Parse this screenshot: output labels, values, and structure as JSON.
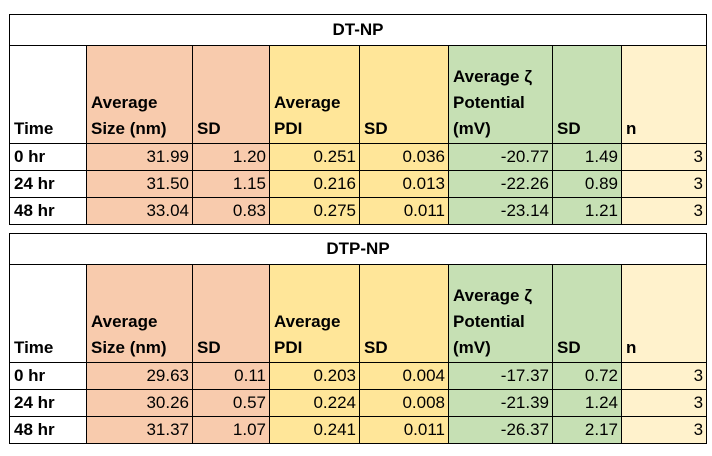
{
  "tables": [
    {
      "title": "DT-NP",
      "headers": {
        "time": "Time",
        "size": "Average Size (nm)",
        "sd1": "SD",
        "pdi": "Average PDI",
        "sd2": "SD",
        "zeta": "Average ζ Potential (mV)",
        "sd3": "SD",
        "n": "n"
      },
      "rows": [
        {
          "time": "0 hr",
          "size": "31.99",
          "sd1": "1.20",
          "pdi": "0.251",
          "sd2": "0.036",
          "zeta": "-20.77",
          "sd3": "1.49",
          "n": "3"
        },
        {
          "time": "24 hr",
          "size": "31.50",
          "sd1": "1.15",
          "pdi": "0.216",
          "sd2": "0.013",
          "zeta": "-22.26",
          "sd3": "0.89",
          "n": "3"
        },
        {
          "time": "48 hr",
          "size": "33.04",
          "sd1": "0.83",
          "pdi": "0.275",
          "sd2": "0.011",
          "zeta": "-23.14",
          "sd3": "1.21",
          "n": "3"
        }
      ]
    },
    {
      "title": "DTP-NP",
      "headers": {
        "time": "Time",
        "size": "Average Size (nm)",
        "sd1": "SD",
        "pdi": "Average PDI",
        "sd2": "SD",
        "zeta": "Average ζ Potential (mV)",
        "sd3": "SD",
        "n": "n"
      },
      "rows": [
        {
          "time": "0 hr",
          "size": "29.63",
          "sd1": "0.11",
          "pdi": "0.203",
          "sd2": "0.004",
          "zeta": "-17.37",
          "sd3": "0.72",
          "n": "3"
        },
        {
          "time": "24 hr",
          "size": "30.26",
          "sd1": "0.57",
          "pdi": "0.224",
          "sd2": "0.008",
          "zeta": "-21.39",
          "sd3": "1.24",
          "n": "3"
        },
        {
          "time": "48 hr",
          "size": "31.37",
          "sd1": "1.07",
          "pdi": "0.241",
          "sd2": "0.011",
          "zeta": "-26.37",
          "sd3": "2.17",
          "n": "3"
        }
      ]
    }
  ],
  "colors": {
    "size_fill": "#f8cbad",
    "pdi_fill": "#ffe699",
    "zeta_fill": "#c6e0b4",
    "n_fill": "#fff2cc"
  }
}
